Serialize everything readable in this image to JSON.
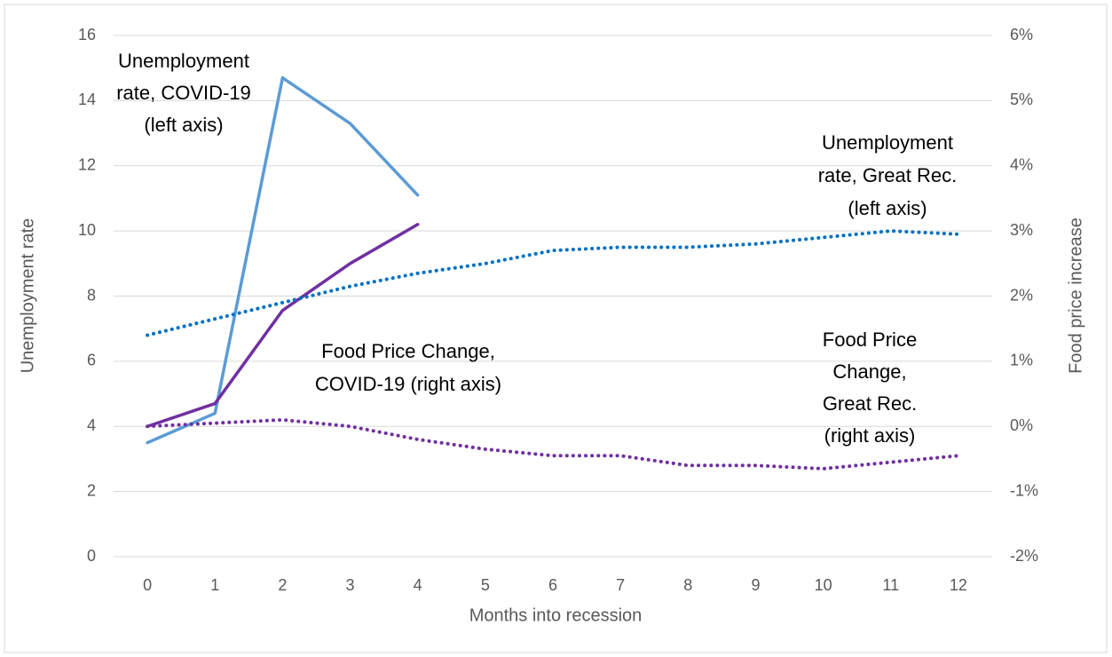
{
  "chart_data": {
    "type": "line",
    "x_label": "Months into recession",
    "y_label": "Unemployment rate",
    "y2_label": "Food price increase",
    "categories": [
      "0",
      "1",
      "2",
      "3",
      "4",
      "5",
      "6",
      "7",
      "8",
      "9",
      "10",
      "11",
      "12"
    ],
    "ylim": [
      0,
      16
    ],
    "yticks": [
      0,
      2,
      4,
      6,
      8,
      10,
      12,
      14,
      16
    ],
    "y2lim": [
      -2,
      6
    ],
    "y2ticks": [
      {
        "value": -2,
        "label": "-2%"
      },
      {
        "value": -1,
        "label": "-1%"
      },
      {
        "value": 0,
        "label": "0%"
      },
      {
        "value": 1,
        "label": "1%"
      },
      {
        "value": 2,
        "label": "2%"
      },
      {
        "value": 3,
        "label": "3%"
      },
      {
        "value": 4,
        "label": "4%"
      },
      {
        "value": 5,
        "label": "5%"
      },
      {
        "value": 6,
        "label": "6%"
      }
    ],
    "grid": true,
    "series": [
      {
        "name": "Unemployment rate, COVID-19",
        "color": "#5b9bd5",
        "style": "solid",
        "axis": "y",
        "values": [
          3.5,
          4.4,
          14.7,
          13.3,
          11.1,
          null,
          null,
          null,
          null,
          null,
          null,
          null,
          null
        ]
      },
      {
        "name": "Food Price Change, COVID-19",
        "color": "#7030a0",
        "style": "solid",
        "axis": "y2",
        "values": [
          0,
          0.35,
          1.78,
          2.5,
          3.1,
          null,
          null,
          null,
          null,
          null,
          null,
          null,
          null
        ]
      },
      {
        "name": "Unemployment rate, Great Rec.",
        "color": "#0070c0",
        "style": "dotted",
        "axis": "y",
        "values": [
          6.8,
          7.3,
          7.8,
          8.3,
          8.7,
          9.0,
          9.4,
          9.5,
          9.5,
          9.6,
          9.8,
          10.0,
          9.9
        ]
      },
      {
        "name": "Food Price Change, Great Rec.",
        "color": "#7030a0",
        "style": "dotted",
        "axis": "y2",
        "values": [
          0,
          0.05,
          0.1,
          0,
          -0.2,
          -0.35,
          -0.45,
          -0.45,
          -0.6,
          -0.6,
          -0.65,
          -0.55,
          -0.45
        ]
      }
    ],
    "annotations": [
      {
        "lines": [
          "Unemployment",
          "rate, COVID-19",
          "(left axis)"
        ]
      },
      {
        "lines": [
          "Unemployment",
          "rate, Great Rec.",
          "(left axis)"
        ]
      },
      {
        "lines": [
          "Food Price Change,",
          "COVID-19 (right axis)"
        ]
      },
      {
        "lines": [
          "Food Price",
          "Change,",
          "Great Rec.",
          "(right axis)"
        ]
      }
    ]
  }
}
